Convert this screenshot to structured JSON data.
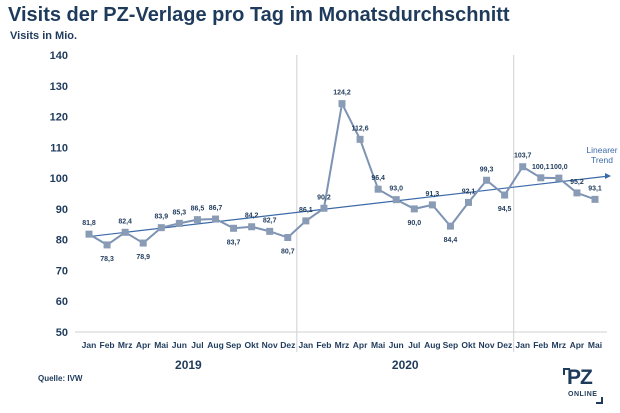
{
  "title": "Visits der PZ-Verlage pro Tag im Monatsdurchschnitt",
  "subtitle": "Visits in Mio.",
  "source": "Quelle: IVW",
  "logo": {
    "top": "PZ",
    "bottom": "ONLINE"
  },
  "colors": {
    "line": "#7d93b3",
    "marker": "#8a9bb5",
    "trend": "#3b6aa8",
    "text": "#1f3b5c",
    "grid": "#d0d0d0"
  },
  "chart_data": {
    "type": "line",
    "categories": [
      "Jan",
      "Feb",
      "Mrz",
      "Apr",
      "Mai",
      "Jun",
      "Jul",
      "Aug",
      "Sep",
      "Okt",
      "Nov",
      "Dez",
      "Jan",
      "Feb",
      "Mrz",
      "Apr",
      "Mai",
      "Jun",
      "Jul",
      "Aug",
      "Sep",
      "Okt",
      "Nov",
      "Dez",
      "Jan",
      "Feb",
      "Mrz",
      "Apr",
      "Mai"
    ],
    "years": [
      {
        "label": "2019",
        "start": 0,
        "end": 11
      },
      {
        "label": "2020",
        "start": 12,
        "end": 23
      }
    ],
    "series": [
      {
        "values": [
          81.8,
          78.3,
          82.4,
          78.9,
          83.9,
          85.3,
          86.5,
          86.7,
          83.7,
          84.2,
          82.7,
          80.7,
          86.1,
          90.2,
          124.2,
          112.6,
          96.4,
          93.0,
          90.0,
          91.3,
          84.4,
          92.1,
          99.3,
          94.5,
          103.7,
          100.1,
          100.0,
          95.2,
          93.1
        ],
        "labels": [
          "81,8",
          "78,3",
          "82,4",
          "78,9",
          "83,9",
          "85,3",
          "86,5",
          "86,7",
          "83,7",
          "84,2",
          "82,7",
          "80,7",
          "86,1",
          "90,2",
          "124,2",
          "112,6",
          "96,4",
          "93,0",
          "90,0",
          "91,3",
          "84,4",
          "92,1",
          "99,3",
          "94,5",
          "103,7",
          "100,1",
          "100,0",
          "95,2",
          "93,1"
        ]
      }
    ],
    "trend": {
      "name": "Linearer Trend",
      "name_lines": [
        "Linearer",
        "Trend"
      ],
      "start": 81.0,
      "end": 100.6
    },
    "ylim": [
      50,
      140
    ],
    "yticks": [
      50,
      60,
      70,
      80,
      90,
      100,
      110,
      120,
      130,
      140
    ],
    "grid": "vertical separators between years"
  }
}
